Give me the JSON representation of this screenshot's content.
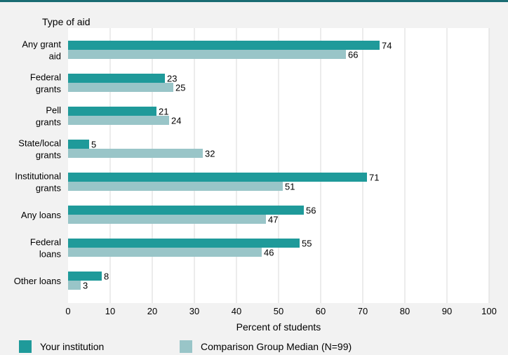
{
  "colors": {
    "accent_bar": "#1a6c73",
    "background": "#f2f2f2",
    "plot_background": "#ffffff",
    "gridline": "#d9d9d9",
    "series_institution": "#1f9a9a",
    "series_comparison": "#99c5c8"
  },
  "chart_data": {
    "type": "bar",
    "orientation": "horizontal",
    "title": "",
    "ylabel": "Type of aid",
    "xlabel": "Percent of students",
    "xlim": [
      0,
      100
    ],
    "xticks": [
      0,
      10,
      20,
      30,
      40,
      50,
      60,
      70,
      80,
      90,
      100
    ],
    "grid": true,
    "legend_position": "bottom",
    "categories": [
      [
        "Any grant",
        "aid"
      ],
      [
        "Federal",
        "grants"
      ],
      [
        "Pell",
        "grants"
      ],
      [
        "State/local",
        "grants"
      ],
      [
        "Institutional",
        "grants"
      ],
      [
        "Any loans"
      ],
      [
        "Federal",
        "loans"
      ],
      [
        "Other loans"
      ]
    ],
    "series": [
      {
        "name": "Your institution",
        "color": "#1f9a9a",
        "values": [
          74,
          23,
          21,
          5,
          71,
          56,
          55,
          8
        ]
      },
      {
        "name": "Comparison Group Median (N=99)",
        "color": "#99c5c8",
        "values": [
          66,
          25,
          24,
          32,
          51,
          47,
          46,
          3
        ]
      }
    ]
  }
}
